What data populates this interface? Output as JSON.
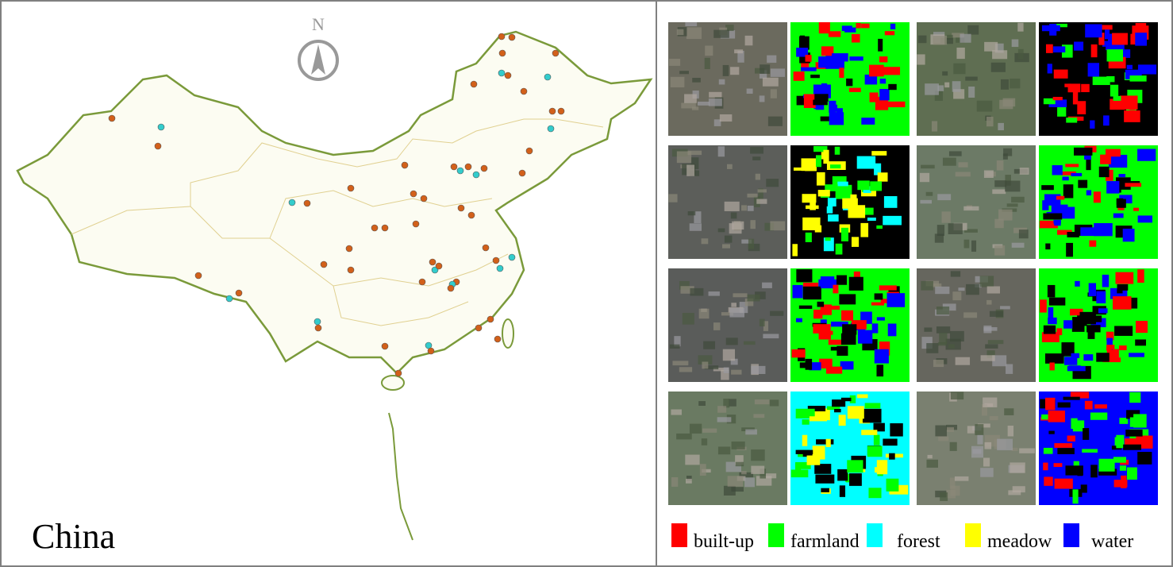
{
  "map": {
    "north": "N",
    "label": "China"
  },
  "legend": [
    {
      "label": "built-up",
      "color": "#ff0000"
    },
    {
      "label": "farmland",
      "color": "#00ff00"
    },
    {
      "label": "forest",
      "color": "#00ffff"
    },
    {
      "label": "meadow",
      "color": "#ffff00"
    },
    {
      "label": "water",
      "color": "#0000ff"
    }
  ]
}
